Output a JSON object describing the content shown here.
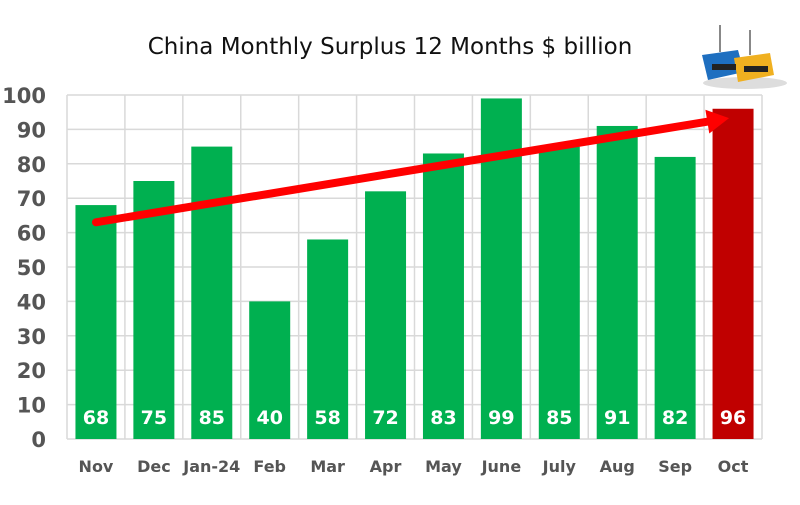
{
  "chart_data": {
    "type": "bar",
    "title": "China Monthly Surplus 12 Months $ billion",
    "categories": [
      "Nov",
      "Dec",
      "Jan-24",
      "Feb",
      "Mar",
      "Apr",
      "May",
      "June",
      "July",
      "Aug",
      "Sep",
      "Oct"
    ],
    "values": [
      68,
      75,
      85,
      40,
      58,
      72,
      83,
      99,
      85,
      91,
      82,
      96
    ],
    "data_labels": [
      "68",
      "75",
      "85",
      "40",
      "58",
      "72",
      "83",
      "99",
      "85",
      "91",
      "82",
      "96"
    ],
    "ylim": [
      0,
      100
    ],
    "yticks": [
      0,
      10,
      20,
      30,
      40,
      50,
      60,
      70,
      80,
      90,
      100
    ],
    "grid": true,
    "legend": "none",
    "colors": {
      "bar": "#00b050",
      "highlight": "#c00000",
      "trend_arrow": "#ff0000"
    },
    "highlighted_category": "Oct",
    "trend_arrow": {
      "from": {
        "category": "Nov",
        "value": 63
      },
      "to": {
        "category": "Oct",
        "value": 93
      }
    },
    "logo": "shipping-containers-icon"
  }
}
